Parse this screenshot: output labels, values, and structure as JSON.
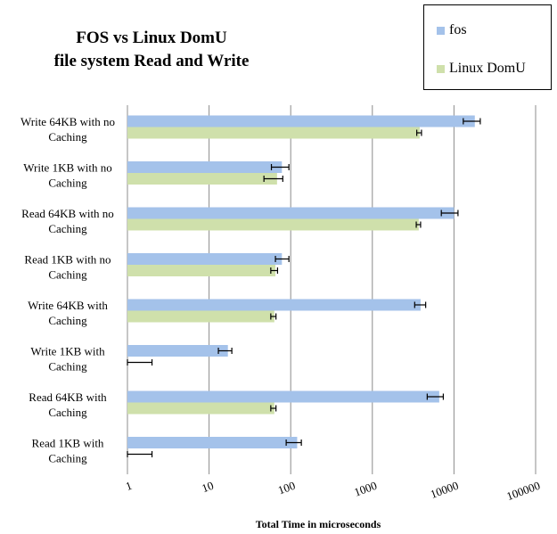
{
  "chart_data": {
    "type": "bar",
    "orientation": "horizontal",
    "title_lines": [
      "FOS vs Linux DomU",
      "file system Read and Write"
    ],
    "xlabel": "Total Time in microseconds",
    "ylabel": "",
    "x_scale": "log",
    "xlim": [
      1,
      100000
    ],
    "x_ticks": [
      "1",
      "10",
      "100",
      "1000",
      "10000",
      "100000"
    ],
    "x_tick_values": [
      1,
      10,
      100,
      1000,
      10000,
      100000
    ],
    "grid": "vertical",
    "legend_position": "top-right",
    "categories": [
      [
        "Write 64KB with no",
        "Caching"
      ],
      [
        "Write 1KB with no",
        "Caching"
      ],
      [
        "Read 64KB with no",
        "Caching"
      ],
      [
        "Read 1KB with no",
        "Caching"
      ],
      [
        "Write 64KB with",
        "Caching"
      ],
      [
        "Write 1KB with",
        "Caching"
      ],
      [
        "Read 64KB with",
        "Caching"
      ],
      [
        "Read 1KB with",
        "Caching"
      ]
    ],
    "series": [
      {
        "name": "fos",
        "color": "#a4c2ea",
        "values": [
          18000,
          78,
          10000,
          78,
          3900,
          17,
          6600,
          120
        ],
        "error_low": [
          13000,
          58,
          7000,
          65,
          3300,
          13,
          4700,
          88
        ],
        "error_high": [
          21000,
          95,
          11200,
          95,
          4500,
          19,
          7400,
          135
        ]
      },
      {
        "name": "Linux DomU",
        "color": "#cfe0ab",
        "values": [
          3800,
          68,
          3700,
          65,
          63,
          0,
          63,
          0
        ],
        "error_low": [
          3500,
          47,
          3450,
          57,
          57,
          1,
          57,
          1
        ],
        "error_high": [
          4000,
          80,
          3900,
          69,
          66,
          2,
          66,
          2
        ]
      }
    ]
  }
}
